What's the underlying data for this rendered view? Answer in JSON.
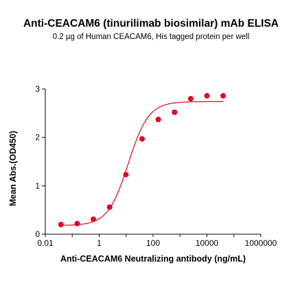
{
  "chart_data": {
    "type": "scatter",
    "title": "Anti-CEACAM6 (tinurilimab biosimilar) mAb ELISA",
    "subtitle": "0.2 µg of Human CEACAM6, His tagged protein per well",
    "xlabel": "Anti-CEACAM6 Neutralizing antibody (ng/mL)",
    "ylabel": "Mean Abs.(OD450)",
    "x_scale": "log",
    "xlim": [
      0.01,
      1000000
    ],
    "ylim": [
      0,
      3
    ],
    "x_ticks": [
      "0.01",
      "1",
      "100",
      "10000",
      "1000000"
    ],
    "y_ticks": [
      "0",
      "1",
      "2",
      "3"
    ],
    "grid": false,
    "legend": "none",
    "colors": {
      "points": "#e8001c",
      "curve": "#e8001c",
      "axes": "#000000"
    },
    "series": [
      {
        "x": [
          0.0381,
          0.153,
          0.61,
          2.44,
          9.77,
          39.1,
          156,
          625,
          2500,
          10000,
          40000
        ],
        "y": [
          0.2,
          0.22,
          0.31,
          0.56,
          1.23,
          1.97,
          2.37,
          2.52,
          2.8,
          2.86,
          2.86
        ]
      }
    ],
    "fit_curve": {
      "model": "4PL",
      "bottom": 0.18,
      "top": 2.74,
      "ec50": 12,
      "hill": 1.15
    }
  }
}
